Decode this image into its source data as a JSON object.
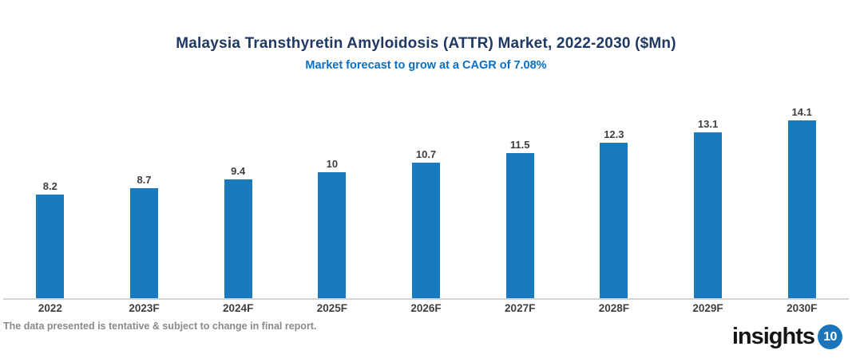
{
  "header": {
    "title": "Malaysia Transthyretin Amyloidosis (ATTR) Market, 2022-2030 ($Mn)",
    "subtitle": "Market forecast to grow at a CAGR of 7.08%"
  },
  "chart_data": {
    "type": "bar",
    "title": "Malaysia Transthyretin Amyloidosis (ATTR) Market, 2022-2030 ($Mn)",
    "subtitle": "Market forecast to grow at a CAGR of 7.08%",
    "categories": [
      "2022",
      "2023F",
      "2024F",
      "2025F",
      "2026F",
      "2027F",
      "2028F",
      "2029F",
      "2030F"
    ],
    "values": [
      8.2,
      8.7,
      9.4,
      10,
      10.7,
      11.5,
      12.3,
      13.1,
      14.1
    ],
    "xlabel": "",
    "ylabel": "",
    "ylim": [
      0,
      15.9
    ],
    "grid": false,
    "legend": false,
    "value_labels": true,
    "bar_color": "#1a7abe"
  },
  "colors": {
    "title": "#1f3864",
    "subtitle": "#0a6fc1",
    "bar": "#1a7abe",
    "axis_line": "#d4d4d4",
    "labels": "#3f3f3f",
    "disclaimer": "#8a8a8a",
    "logo_circle": "#1b75bb"
  },
  "footer": {
    "disclaimer": "The data presented is tentative & subject to change in final report.",
    "logo_text": "insights",
    "logo_number": "10"
  }
}
